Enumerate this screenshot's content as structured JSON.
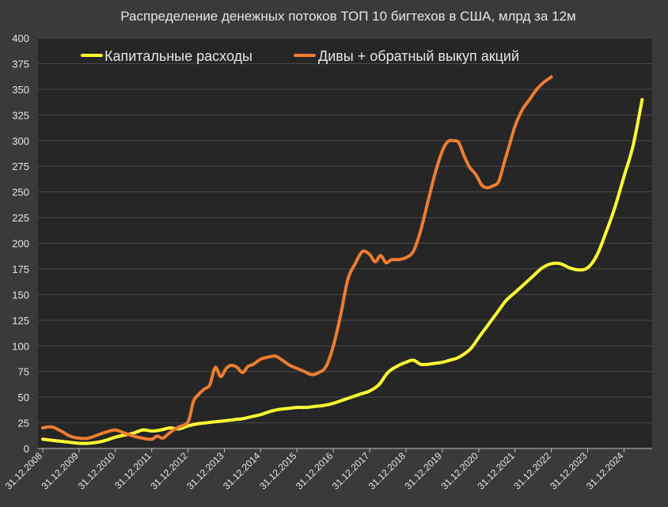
{
  "chart_data": {
    "type": "line",
    "title": "Распределение денежных потоков ТОП 10 бигтехов в США, млрд за 12м",
    "xlabel": "",
    "ylabel": "",
    "ylim": [
      0,
      400
    ],
    "y_ticks": [
      "0",
      "25",
      "50",
      "75",
      "100",
      "125",
      "150",
      "175",
      "200",
      "225",
      "250",
      "275",
      "300",
      "325",
      "350",
      "375",
      "400"
    ],
    "x_ticks": [
      "31.12.2008",
      "31.12.2009",
      "31.12.2010",
      "31.12.2011",
      "31.12.2012",
      "31.12.2013",
      "31.12.2014",
      "31.12.2015",
      "31.12.2016",
      "31.12.2017",
      "31.12.2018",
      "31.12.2019",
      "31.12.2020",
      "31.12.2021",
      "31.12.2022",
      "31.12.2023",
      "31.12.2024"
    ],
    "grid": true,
    "legend": "top",
    "series": [
      {
        "name": "Капитальные расходы",
        "color": "#ffff33",
        "points": [
          [
            0,
            9
          ],
          [
            0.25,
            8
          ],
          [
            0.5,
            7
          ],
          [
            0.75,
            6
          ],
          [
            1,
            5
          ],
          [
            1.25,
            5
          ],
          [
            1.5,
            6
          ],
          [
            1.75,
            8
          ],
          [
            2,
            11
          ],
          [
            2.25,
            13
          ],
          [
            2.5,
            15
          ],
          [
            2.75,
            18
          ],
          [
            3,
            17
          ],
          [
            3.25,
            18
          ],
          [
            3.5,
            20
          ],
          [
            3.75,
            19
          ],
          [
            4,
            22
          ],
          [
            4.25,
            24
          ],
          [
            4.5,
            25
          ],
          [
            4.75,
            26
          ],
          [
            5,
            27
          ],
          [
            5.25,
            28
          ],
          [
            5.5,
            29
          ],
          [
            5.75,
            31
          ],
          [
            6,
            33
          ],
          [
            6.25,
            36
          ],
          [
            6.5,
            38
          ],
          [
            6.75,
            39
          ],
          [
            7,
            40
          ],
          [
            7.25,
            40
          ],
          [
            7.5,
            41
          ],
          [
            7.75,
            42
          ],
          [
            8,
            44
          ],
          [
            8.25,
            47
          ],
          [
            8.5,
            50
          ],
          [
            8.75,
            53
          ],
          [
            9,
            56
          ],
          [
            9.25,
            62
          ],
          [
            9.5,
            74
          ],
          [
            9.75,
            80
          ],
          [
            10,
            84
          ],
          [
            10.2,
            86
          ],
          [
            10.4,
            82
          ],
          [
            10.6,
            82
          ],
          [
            10.8,
            83
          ],
          [
            11,
            84
          ],
          [
            11.2,
            86
          ],
          [
            11.4,
            88
          ],
          [
            11.6,
            92
          ],
          [
            11.8,
            98
          ],
          [
            12,
            108
          ],
          [
            12.25,
            120
          ],
          [
            12.5,
            132
          ],
          [
            12.75,
            144
          ],
          [
            13,
            152
          ],
          [
            13.25,
            160
          ],
          [
            13.5,
            168
          ],
          [
            13.75,
            176
          ],
          [
            14,
            180
          ],
          [
            14.25,
            180
          ],
          [
            14.5,
            176
          ],
          [
            14.75,
            174
          ],
          [
            15,
            176
          ],
          [
            15.25,
            188
          ],
          [
            15.5,
            210
          ],
          [
            15.75,
            235
          ],
          [
            16,
            265
          ],
          [
            16.25,
            295
          ],
          [
            16.5,
            340
          ]
        ]
      },
      {
        "name": "Дивы + обратный выкуп акций",
        "color": "#ed7d31",
        "points": [
          [
            0,
            20
          ],
          [
            0.25,
            21
          ],
          [
            0.5,
            17
          ],
          [
            0.75,
            12
          ],
          [
            1,
            10
          ],
          [
            1.25,
            10
          ],
          [
            1.5,
            13
          ],
          [
            1.75,
            16
          ],
          [
            2,
            18
          ],
          [
            2.25,
            15
          ],
          [
            2.5,
            12
          ],
          [
            2.75,
            10
          ],
          [
            3,
            9
          ],
          [
            3.15,
            12
          ],
          [
            3.3,
            10
          ],
          [
            3.45,
            14
          ],
          [
            3.6,
            18
          ],
          [
            3.75,
            21
          ],
          [
            4,
            26
          ],
          [
            4.15,
            46
          ],
          [
            4.3,
            53
          ],
          [
            4.45,
            58
          ],
          [
            4.6,
            62
          ],
          [
            4.75,
            79
          ],
          [
            4.9,
            70
          ],
          [
            5.05,
            78
          ],
          [
            5.2,
            81
          ],
          [
            5.35,
            79
          ],
          [
            5.5,
            74
          ],
          [
            5.65,
            80
          ],
          [
            5.8,
            82
          ],
          [
            6,
            87
          ],
          [
            6.2,
            89
          ],
          [
            6.4,
            90
          ],
          [
            6.6,
            86
          ],
          [
            6.8,
            81
          ],
          [
            7,
            78
          ],
          [
            7.2,
            75
          ],
          [
            7.4,
            72
          ],
          [
            7.6,
            74
          ],
          [
            7.8,
            80
          ],
          [
            8,
            100
          ],
          [
            8.2,
            130
          ],
          [
            8.4,
            165
          ],
          [
            8.6,
            180
          ],
          [
            8.8,
            192
          ],
          [
            9,
            189
          ],
          [
            9.15,
            182
          ],
          [
            9.3,
            188
          ],
          [
            9.45,
            181
          ],
          [
            9.6,
            184
          ],
          [
            9.8,
            184
          ],
          [
            10,
            186
          ],
          [
            10.2,
            192
          ],
          [
            10.4,
            212
          ],
          [
            10.6,
            240
          ],
          [
            10.8,
            268
          ],
          [
            11,
            290
          ],
          [
            11.15,
            299
          ],
          [
            11.3,
            300
          ],
          [
            11.45,
            298
          ],
          [
            11.6,
            285
          ],
          [
            11.75,
            274
          ],
          [
            11.9,
            268
          ],
          [
            12,
            262
          ],
          [
            12.1,
            256
          ],
          [
            12.25,
            254
          ],
          [
            12.4,
            256
          ],
          [
            12.55,
            260
          ],
          [
            12.7,
            278
          ],
          [
            12.85,
            296
          ],
          [
            13,
            314
          ],
          [
            13.2,
            330
          ],
          [
            13.4,
            340
          ],
          [
            13.6,
            350
          ],
          [
            13.8,
            357
          ],
          [
            14,
            362
          ]
        ]
      }
    ]
  }
}
